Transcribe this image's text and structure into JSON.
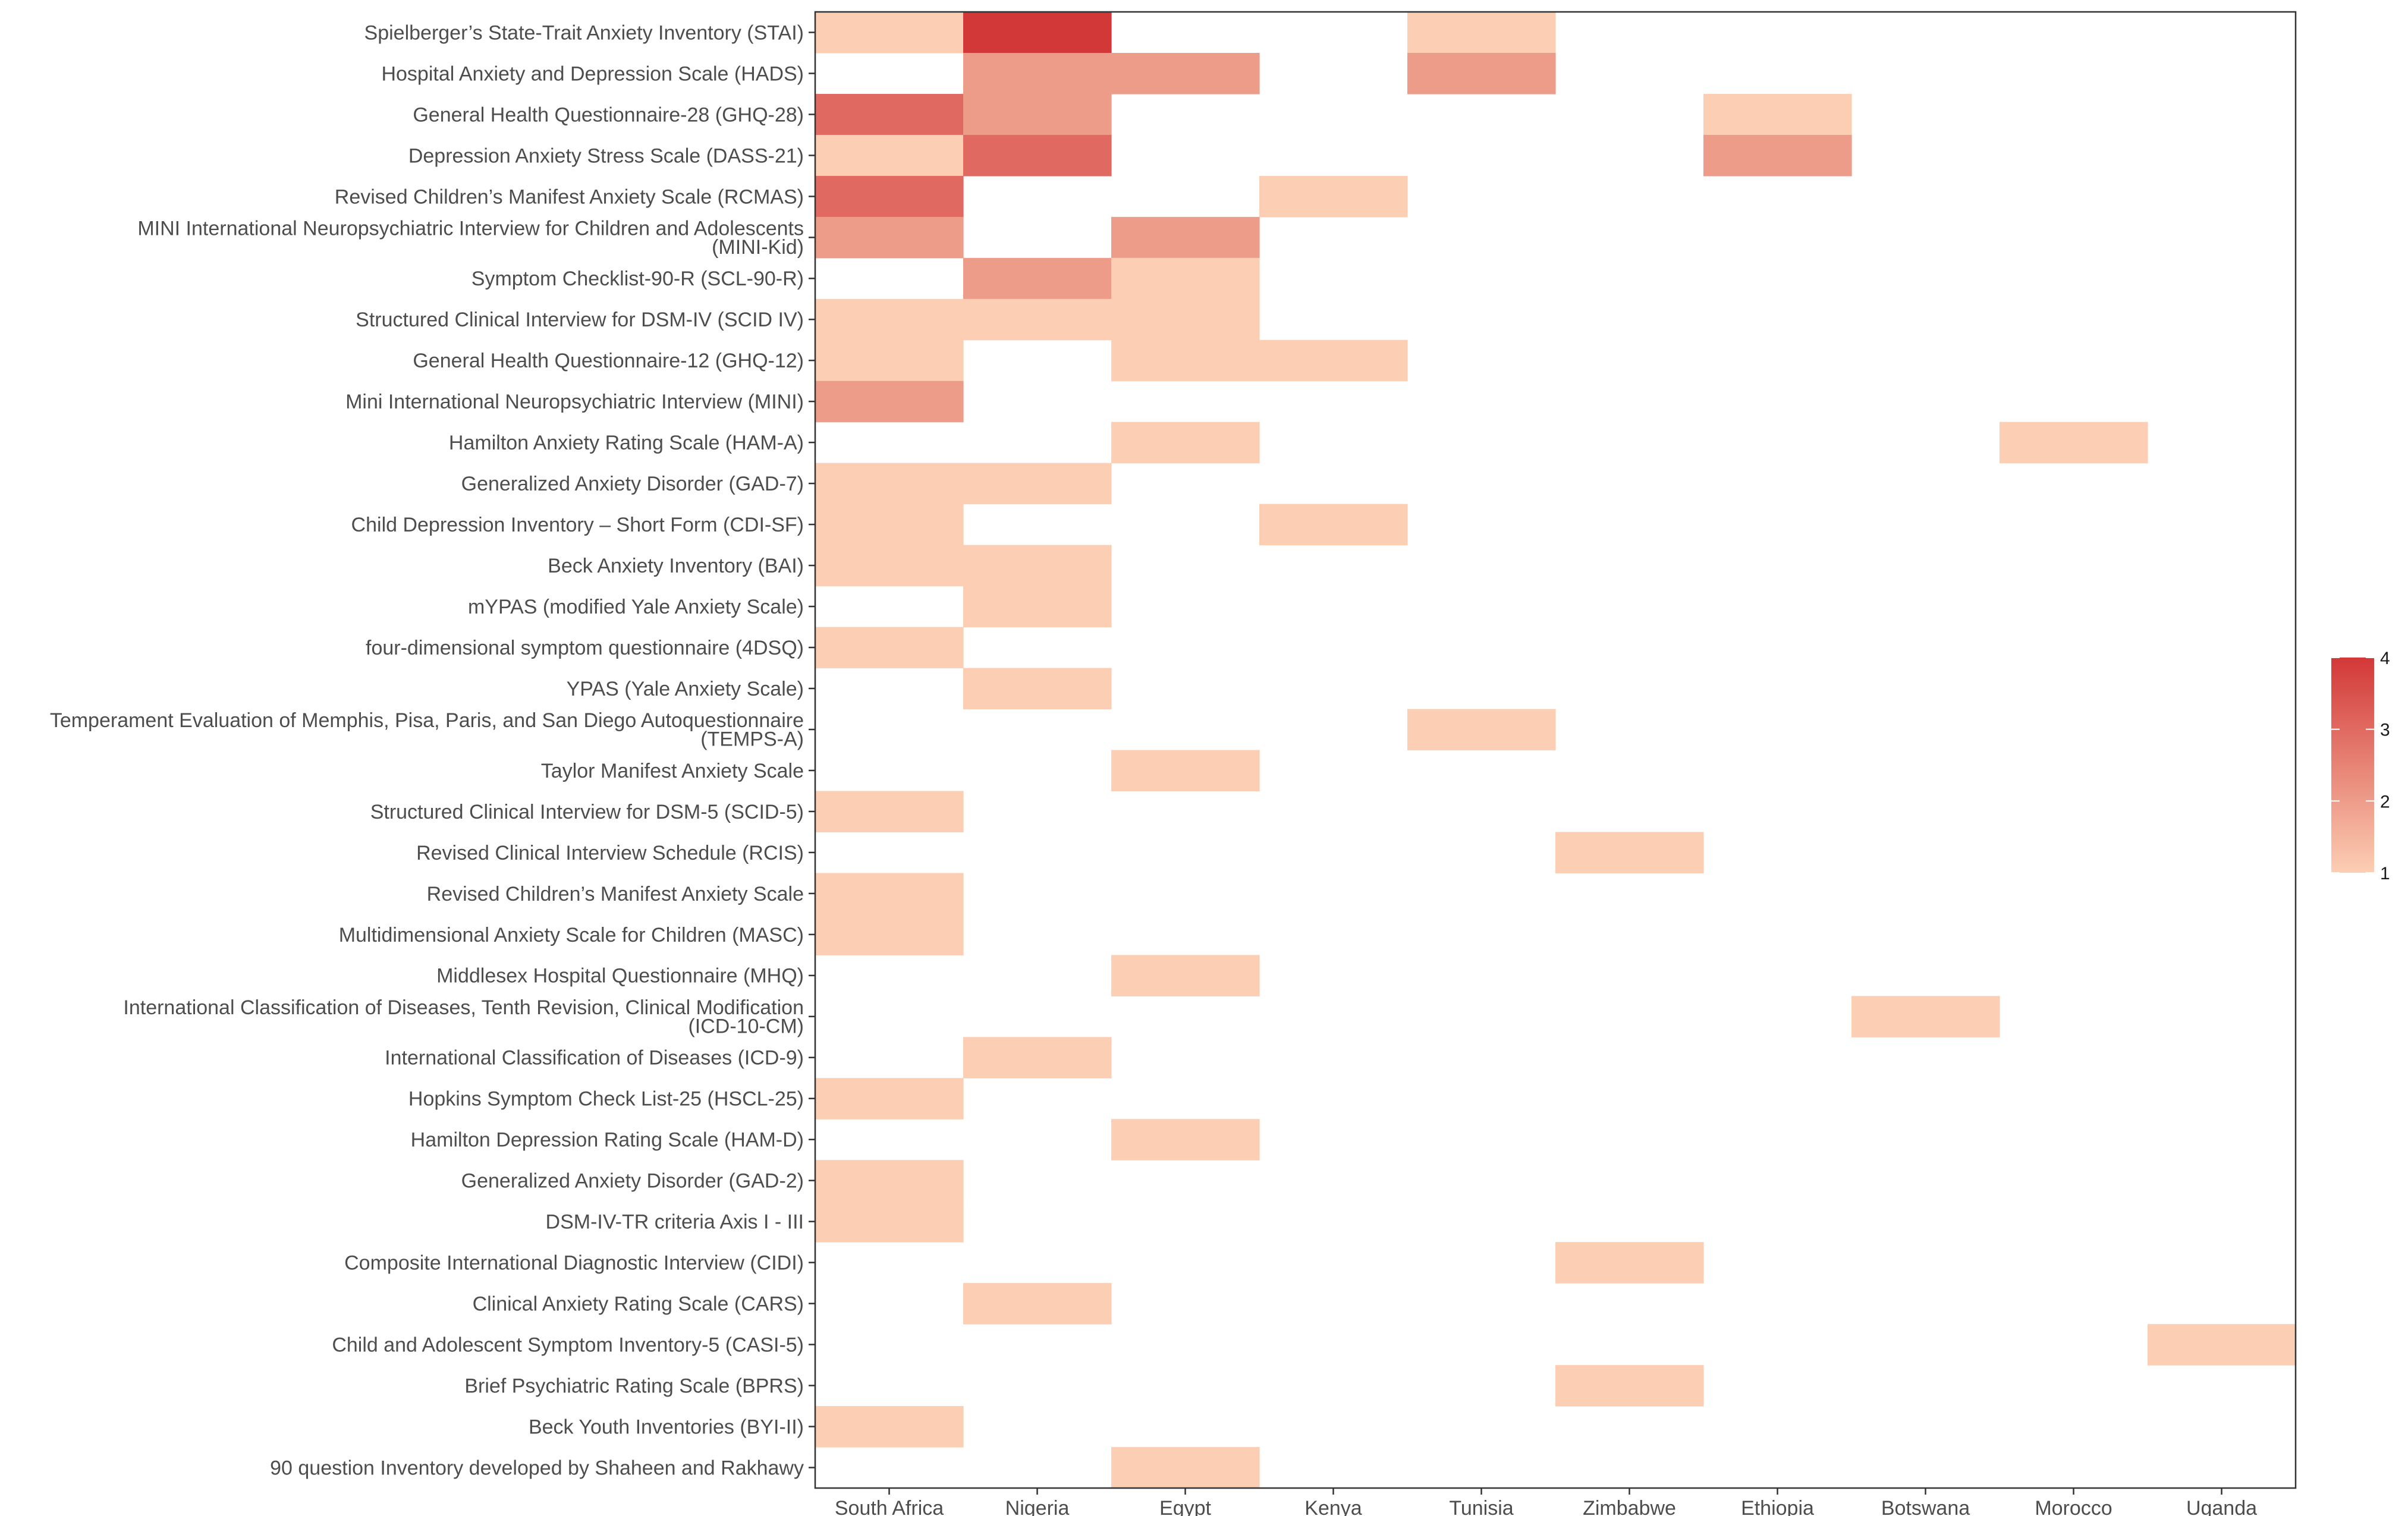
{
  "chart_data": {
    "type": "heatmap",
    "x_categories": [
      "South Africa",
      "Nigeria",
      "Egypt",
      "Kenya",
      "Tunisia",
      "Zimbabwe",
      "Ethiopia",
      "Botswana",
      "Morocco",
      "Uganda"
    ],
    "y_categories": [
      [
        "Spielberger’s State-Trait Anxiety Inventory (STAI)"
      ],
      [
        "Hospital Anxiety and Depression Scale (HADS)"
      ],
      [
        "General Health Questionnaire-28 (GHQ-28)"
      ],
      [
        "Depression Anxiety Stress Scale (DASS-21)"
      ],
      [
        "Revised Children’s Manifest Anxiety Scale (RCMAS)"
      ],
      [
        "MINI International Neuropsychiatric Interview for Children and Adolescents",
        "(MINI-Kid)"
      ],
      [
        "Symptom Checklist-90-R (SCL-90-R)"
      ],
      [
        "Structured Clinical Interview for DSM-IV (SCID IV)"
      ],
      [
        "General Health Questionnaire-12 (GHQ-12)"
      ],
      [
        "Mini International Neuropsychiatric Interview (MINI)"
      ],
      [
        "Hamilton Anxiety Rating Scale (HAM-A)"
      ],
      [
        "Generalized Anxiety Disorder (GAD-7)"
      ],
      [
        "Child Depression Inventory – Short Form (CDI-SF)"
      ],
      [
        "Beck Anxiety Inventory (BAI)"
      ],
      [
        "mYPAS (modified Yale Anxiety Scale)"
      ],
      [
        "four-dimensional symptom questionnaire (4DSQ)"
      ],
      [
        "YPAS (Yale Anxiety Scale)"
      ],
      [
        "Temperament Evaluation of Memphis, Pisa, Paris, and San Diego Autoquestionnaire",
        "(TEMPS-A)"
      ],
      [
        "Taylor Manifest Anxiety Scale"
      ],
      [
        "Structured Clinical Interview for DSM-5 (SCID-5)"
      ],
      [
        "Revised Clinical Interview Schedule (RCIS)"
      ],
      [
        "Revised Children’s Manifest Anxiety Scale"
      ],
      [
        "Multidimensional Anxiety Scale for Children (MASC)"
      ],
      [
        "Middlesex Hospital Questionnaire (MHQ)"
      ],
      [
        "International Classification of Diseases, Tenth Revision, Clinical Modification",
        "(ICD-10-CM)"
      ],
      [
        "International Classification of Diseases (ICD-9)"
      ],
      [
        "Hopkins Symptom Check List-25 (HSCL-25)"
      ],
      [
        "Hamilton Depression Rating Scale (HAM-D)"
      ],
      [
        "Generalized Anxiety Disorder (GAD-2)"
      ],
      [
        "DSM-IV-TR criteria Axis I - III"
      ],
      [
        "Composite International Diagnostic Interview (CIDI)"
      ],
      [
        "Clinical Anxiety Rating Scale (CARS)"
      ],
      [
        "Child and Adolescent Symptom Inventory-5 (CASI-5)"
      ],
      [
        "Brief Psychiatric Rating Scale (BPRS)"
      ],
      [
        "Beck Youth Inventories (BYI-II)"
      ],
      [
        "90 question Inventory developed by Shaheen and Rakhawy"
      ]
    ],
    "values": [
      [
        1,
        4,
        0,
        0,
        1,
        0,
        0,
        0,
        0,
        0
      ],
      [
        0,
        2,
        2,
        0,
        2,
        0,
        0,
        0,
        0,
        0
      ],
      [
        3,
        2,
        0,
        0,
        0,
        0,
        1,
        0,
        0,
        0
      ],
      [
        1,
        3,
        0,
        0,
        0,
        0,
        2,
        0,
        0,
        0
      ],
      [
        3,
        0,
        0,
        1,
        0,
        0,
        0,
        0,
        0,
        0
      ],
      [
        2,
        0,
        2,
        0,
        0,
        0,
        0,
        0,
        0,
        0
      ],
      [
        0,
        2,
        1,
        0,
        0,
        0,
        0,
        0,
        0,
        0
      ],
      [
        1,
        1,
        1,
        0,
        0,
        0,
        0,
        0,
        0,
        0
      ],
      [
        1,
        0,
        1,
        1,
        0,
        0,
        0,
        0,
        0,
        0
      ],
      [
        2,
        0,
        0,
        0,
        0,
        0,
        0,
        0,
        0,
        0
      ],
      [
        0,
        0,
        1,
        0,
        0,
        0,
        0,
        0,
        1,
        0
      ],
      [
        1,
        1,
        0,
        0,
        0,
        0,
        0,
        0,
        0,
        0
      ],
      [
        1,
        0,
        0,
        1,
        0,
        0,
        0,
        0,
        0,
        0
      ],
      [
        1,
        1,
        0,
        0,
        0,
        0,
        0,
        0,
        0,
        0
      ],
      [
        0,
        1,
        0,
        0,
        0,
        0,
        0,
        0,
        0,
        0
      ],
      [
        1,
        0,
        0,
        0,
        0,
        0,
        0,
        0,
        0,
        0
      ],
      [
        0,
        1,
        0,
        0,
        0,
        0,
        0,
        0,
        0,
        0
      ],
      [
        0,
        0,
        0,
        0,
        1,
        0,
        0,
        0,
        0,
        0
      ],
      [
        0,
        0,
        1,
        0,
        0,
        0,
        0,
        0,
        0,
        0
      ],
      [
        1,
        0,
        0,
        0,
        0,
        0,
        0,
        0,
        0,
        0
      ],
      [
        0,
        0,
        0,
        0,
        0,
        1,
        0,
        0,
        0,
        0
      ],
      [
        1,
        0,
        0,
        0,
        0,
        0,
        0,
        0,
        0,
        0
      ],
      [
        1,
        0,
        0,
        0,
        0,
        0,
        0,
        0,
        0,
        0
      ],
      [
        0,
        0,
        1,
        0,
        0,
        0,
        0,
        0,
        0,
        0
      ],
      [
        0,
        0,
        0,
        0,
        0,
        0,
        0,
        1,
        0,
        0
      ],
      [
        0,
        1,
        0,
        0,
        0,
        0,
        0,
        0,
        0,
        0
      ],
      [
        1,
        0,
        0,
        0,
        0,
        0,
        0,
        0,
        0,
        0
      ],
      [
        0,
        0,
        1,
        0,
        0,
        0,
        0,
        0,
        0,
        0
      ],
      [
        1,
        0,
        0,
        0,
        0,
        0,
        0,
        0,
        0,
        0
      ],
      [
        1,
        0,
        0,
        0,
        0,
        0,
        0,
        0,
        0,
        0
      ],
      [
        0,
        0,
        0,
        0,
        0,
        1,
        0,
        0,
        0,
        0
      ],
      [
        0,
        1,
        0,
        0,
        0,
        0,
        0,
        0,
        0,
        0
      ],
      [
        0,
        0,
        0,
        0,
        0,
        0,
        0,
        0,
        0,
        1
      ],
      [
        0,
        0,
        0,
        0,
        0,
        1,
        0,
        0,
        0,
        0
      ],
      [
        1,
        0,
        0,
        0,
        0,
        0,
        0,
        0,
        0,
        0
      ],
      [
        0,
        0,
        1,
        0,
        0,
        0,
        0,
        0,
        0,
        0
      ]
    ],
    "color_scale": {
      "domain": [
        1,
        4
      ],
      "low_color": "#fcceb4",
      "high_color": "#d23837",
      "ticks": [
        1,
        2,
        3,
        4
      ]
    },
    "empty_cell": "blank",
    "grid": false,
    "legend_position": "right",
    "title": "",
    "xlabel": "",
    "ylabel": ""
  }
}
